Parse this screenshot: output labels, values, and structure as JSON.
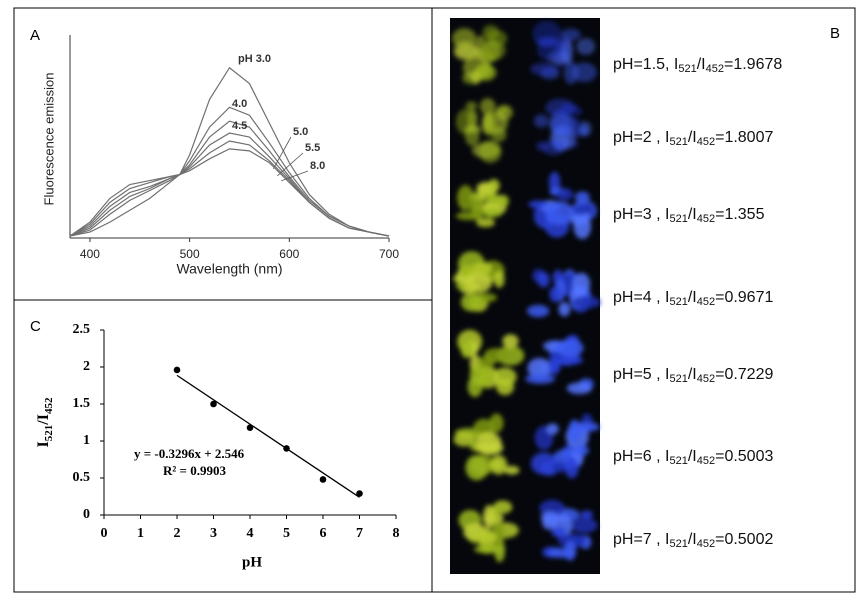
{
  "panel_labels": {
    "a": "A",
    "b": "B",
    "c": "C"
  },
  "chart_data": [
    {
      "type": "line",
      "xlabel": "Wavelength (nm)",
      "ylabel": "Fluorescence emission",
      "x": [
        380,
        400,
        420,
        440,
        460,
        480,
        490,
        500,
        520,
        540,
        560,
        580,
        600,
        620,
        640,
        660,
        680,
        700
      ],
      "xlim": [
        380,
        700
      ],
      "xticks": [
        400,
        500,
        600,
        700
      ],
      "ylim": [
        0,
        100
      ],
      "color": "#707070",
      "series": [
        {
          "name": "pH 3.0",
          "values": [
            1,
            3,
            8,
            14,
            20,
            28,
            32,
            42,
            70,
            86,
            78,
            58,
            38,
            22,
            12,
            6,
            3,
            1
          ]
        },
        {
          "name": "4.0",
          "values": [
            1,
            4,
            12,
            19,
            24,
            29,
            32,
            39,
            56,
            66,
            62,
            48,
            33,
            20,
            11,
            6,
            3,
            1
          ]
        },
        {
          "name": "4.5",
          "values": [
            1,
            5,
            14,
            21,
            25,
            30,
            32,
            37,
            51,
            59,
            56,
            44,
            31,
            19,
            11,
            6,
            3,
            1
          ]
        },
        {
          "name": "5.0",
          "values": [
            1,
            6,
            16,
            23,
            26,
            30,
            32,
            36,
            47,
            53,
            51,
            41,
            30,
            18,
            10,
            5,
            3,
            1
          ]
        },
        {
          "name": "5.5",
          "values": [
            1,
            7,
            18,
            25,
            28,
            31,
            32,
            35,
            43,
            49,
            47,
            39,
            29,
            18,
            10,
            5,
            3,
            1
          ]
        },
        {
          "name": "8.0",
          "values": [
            1,
            8,
            20,
            27,
            29,
            31,
            32,
            34,
            40,
            45,
            44,
            38,
            28,
            18,
            10,
            5,
            3,
            1
          ]
        }
      ]
    },
    {
      "type": "scatter",
      "xlabel": "pH",
      "ylabel_parts": [
        {
          "text": "I"
        },
        {
          "text": "521",
          "sub": true
        },
        {
          "text": "/I"
        },
        {
          "text": "452",
          "sub": true
        }
      ],
      "x": [
        2,
        3,
        4,
        5,
        6,
        7
      ],
      "values": [
        1.96,
        1.5,
        1.18,
        0.9,
        0.48,
        0.29
      ],
      "xlim": [
        0,
        8
      ],
      "xticks": [
        0,
        1,
        2,
        3,
        4,
        5,
        6,
        7,
        8
      ],
      "ylim": [
        0,
        2.5
      ],
      "yticks": [
        0,
        0.5,
        1,
        1.5,
        2,
        2.5
      ],
      "color": "#000000",
      "trendline": {
        "slope": -0.3296,
        "intercept": 2.546,
        "label": "y = -0.3296x + 2.546",
        "r2_label": "R² = 0.9903"
      }
    }
  ],
  "images": {
    "subscripts": [
      "521",
      "452"
    ],
    "slash": "/I",
    "rows": [
      {
        "ph": "pH=1.5, I",
        "ratio": "=1.9678"
      },
      {
        "ph": "pH=2 , I",
        "ratio": "=1.8007"
      },
      {
        "ph": "pH=3 , I",
        "ratio": "=1.355"
      },
      {
        "ph": "pH=4 , I",
        "ratio": "=0.9671"
      },
      {
        "ph": "pH=5 , I",
        "ratio": "=0.7229"
      },
      {
        "ph": "pH=6 , I",
        "ratio": "=0.5003"
      },
      {
        "ph": "pH=7 , I",
        "ratio": "=0.5002"
      }
    ]
  }
}
